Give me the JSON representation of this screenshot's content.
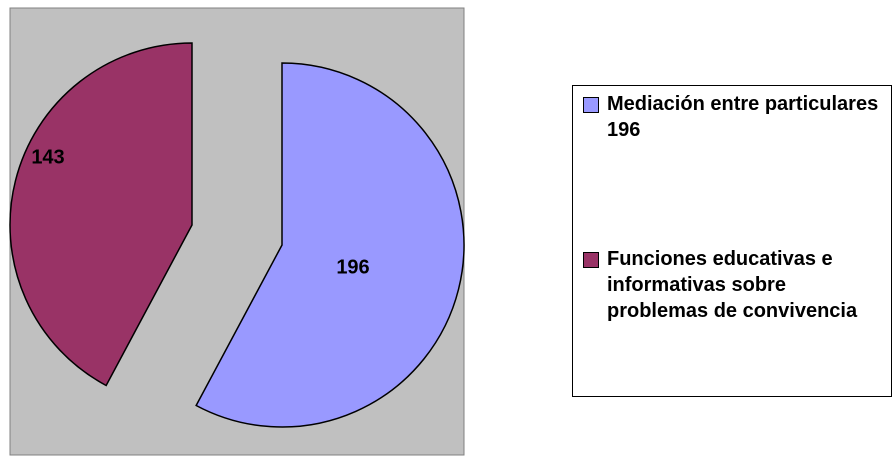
{
  "chart_data": {
    "type": "pie",
    "categories": [
      "Mediación entre particulares 196",
      "Funciones educativas e informativas sobre problemas de convivencia"
    ],
    "values": [
      196,
      143
    ],
    "colors": [
      "#9999ff",
      "#993366"
    ],
    "legend": "right"
  }
}
